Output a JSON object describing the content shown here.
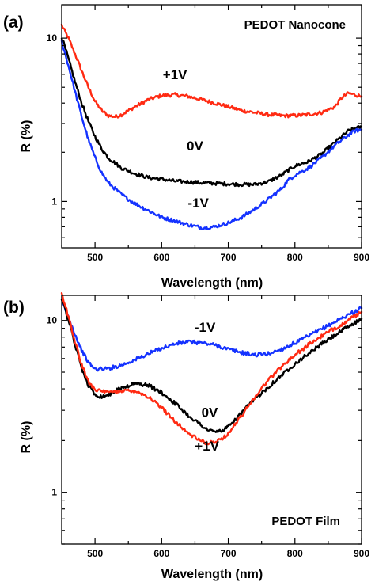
{
  "chart_data": [
    {
      "panel_label": "(a)",
      "type": "line",
      "title": "PEDOT Nanocone",
      "xlabel": "Wavelength (nm)",
      "ylabel": "R (%)",
      "xlim": [
        450,
        900
      ],
      "ylim": [
        0.52,
        16
      ],
      "yscale": "log",
      "grid": false,
      "x_ticks": [
        500,
        600,
        700,
        800,
        900
      ],
      "y_ticks": [
        1,
        10
      ],
      "colors": {
        "+1V": "#ff2a12",
        "0V": "#000000",
        "-1V": "#1432ff"
      },
      "annotations": [
        {
          "text": "+1V",
          "x": 620,
          "y": 5.6
        },
        {
          "text": "0V",
          "x": 650,
          "y": 2.05
        },
        {
          "text": "-1V",
          "x": 655,
          "y": 0.92
        }
      ],
      "series": [
        {
          "label_text": "+1V",
          "x": [
            450,
            460,
            470,
            480,
            490,
            500,
            510,
            520,
            530,
            540,
            560,
            580,
            600,
            620,
            640,
            660,
            680,
            700,
            720,
            740,
            760,
            780,
            800,
            820,
            840,
            860,
            870,
            880,
            890,
            900
          ],
          "y": [
            12.0,
            10.0,
            8.0,
            6.3,
            5.0,
            4.1,
            3.6,
            3.35,
            3.3,
            3.4,
            3.8,
            4.2,
            4.45,
            4.5,
            4.4,
            4.2,
            4.0,
            3.8,
            3.6,
            3.5,
            3.4,
            3.35,
            3.35,
            3.4,
            3.5,
            3.8,
            4.3,
            4.6,
            4.5,
            4.4
          ]
        },
        {
          "label_text": "0V",
          "x": [
            450,
            460,
            470,
            480,
            490,
            500,
            510,
            520,
            540,
            560,
            580,
            600,
            620,
            640,
            660,
            680,
            700,
            720,
            740,
            760,
            780,
            790,
            800,
            820,
            840,
            860,
            880,
            890,
            900
          ],
          "y": [
            10.2,
            7.5,
            5.4,
            4.0,
            3.1,
            2.5,
            2.1,
            1.85,
            1.6,
            1.48,
            1.4,
            1.37,
            1.33,
            1.32,
            1.3,
            1.29,
            1.28,
            1.27,
            1.27,
            1.32,
            1.45,
            1.55,
            1.65,
            1.75,
            1.95,
            2.3,
            2.7,
            2.8,
            2.85
          ]
        },
        {
          "label_text": "-1V",
          "x": [
            450,
            460,
            470,
            480,
            490,
            500,
            510,
            520,
            540,
            560,
            580,
            600,
            620,
            640,
            660,
            680,
            700,
            720,
            740,
            760,
            780,
            790,
            800,
            820,
            840,
            860,
            880,
            890,
            900
          ],
          "y": [
            9.5,
            6.8,
            4.7,
            3.3,
            2.4,
            1.85,
            1.5,
            1.3,
            1.1,
            0.97,
            0.88,
            0.8,
            0.76,
            0.72,
            0.69,
            0.7,
            0.74,
            0.8,
            0.9,
            1.03,
            1.2,
            1.35,
            1.45,
            1.6,
            1.85,
            2.2,
            2.55,
            2.7,
            2.75
          ]
        }
      ]
    },
    {
      "panel_label": "(b)",
      "type": "line",
      "title": "PEDOT Film",
      "xlabel": "Wavelength (nm)",
      "ylabel": "R (%)",
      "xlim": [
        450,
        900
      ],
      "ylim": [
        0.5,
        14
      ],
      "yscale": "log",
      "grid": false,
      "x_ticks": [
        500,
        600,
        700,
        800,
        900
      ],
      "y_ticks": [
        1,
        10
      ],
      "colors": {
        "-1V": "#1432ff",
        "0V": "#000000",
        "+1V": "#ff2a12"
      },
      "annotations": [
        {
          "text": "-1V",
          "x": 665,
          "y": 8.6
        },
        {
          "text": "0V",
          "x": 672,
          "y": 2.75
        },
        {
          "text": "+1V",
          "x": 668,
          "y": 1.75
        }
      ],
      "series": [
        {
          "label_text": "-1V",
          "x": [
            450,
            460,
            470,
            480,
            490,
            500,
            520,
            540,
            560,
            580,
            600,
            620,
            640,
            660,
            680,
            700,
            720,
            740,
            760,
            780,
            800,
            820,
            840,
            860,
            880,
            900
          ],
          "y": [
            13.0,
            10.5,
            8.3,
            6.7,
            5.7,
            5.2,
            5.25,
            5.5,
            5.9,
            6.4,
            6.9,
            7.3,
            7.5,
            7.4,
            7.2,
            6.8,
            6.5,
            6.3,
            6.4,
            6.8,
            7.4,
            8.1,
            8.9,
            9.8,
            10.8,
            11.8
          ]
        },
        {
          "label_text": "0V",
          "x": [
            450,
            460,
            470,
            480,
            490,
            500,
            510,
            520,
            540,
            560,
            580,
            600,
            620,
            640,
            660,
            670,
            680,
            690,
            700,
            720,
            740,
            760,
            780,
            800,
            820,
            840,
            860,
            880,
            900
          ],
          "y": [
            13.5,
            10.0,
            7.2,
            5.3,
            4.2,
            3.7,
            3.6,
            3.7,
            4.05,
            4.3,
            4.2,
            3.8,
            3.3,
            2.8,
            2.45,
            2.3,
            2.25,
            2.28,
            2.4,
            2.9,
            3.5,
            4.1,
            4.8,
            5.6,
            6.4,
            7.3,
            8.2,
            9.2,
            10.2
          ]
        },
        {
          "label_text": "+1V",
          "x": [
            450,
            460,
            470,
            480,
            490,
            500,
            510,
            520,
            540,
            560,
            580,
            600,
            620,
            640,
            660,
            670,
            680,
            690,
            700,
            720,
            740,
            760,
            780,
            800,
            820,
            840,
            860,
            880,
            900
          ],
          "y": [
            14.5,
            10.5,
            7.5,
            5.5,
            4.4,
            4.0,
            3.85,
            3.8,
            3.9,
            3.9,
            3.6,
            3.1,
            2.6,
            2.2,
            1.98,
            1.93,
            1.95,
            2.05,
            2.2,
            2.8,
            3.6,
            4.5,
            5.4,
            6.3,
            7.2,
            8.1,
            9.0,
            10.0,
            11.2
          ]
        }
      ]
    }
  ]
}
